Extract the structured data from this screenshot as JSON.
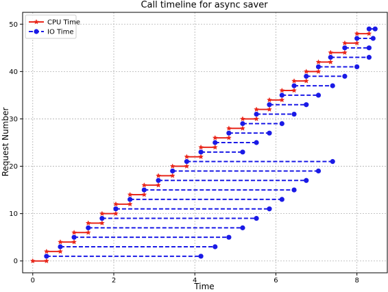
{
  "chart_data": {
    "type": "line",
    "title": "Call timeline for async saver",
    "xlabel": "Time",
    "ylabel": "Request Number",
    "xlim": [
      -0.25,
      8.75
    ],
    "ylim": [
      -2.5,
      52.5
    ],
    "xticks": [
      0,
      2,
      4,
      6,
      8
    ],
    "yticks": [
      0,
      10,
      20,
      30,
      40,
      50
    ],
    "grid": true,
    "legend": {
      "placement": "top-left"
    },
    "series": [
      {
        "name": "CPU Time",
        "color": "#e8261a",
        "line_style": "solid",
        "marker": "star",
        "segments": [
          {
            "y": 0,
            "x": [
              0.0,
              0.34
            ]
          },
          {
            "y": 2,
            "x": [
              0.34,
              0.68
            ]
          },
          {
            "y": 4,
            "x": [
              0.68,
              1.02
            ]
          },
          {
            "y": 6,
            "x": [
              1.02,
              1.37
            ]
          },
          {
            "y": 8,
            "x": [
              1.37,
              1.71
            ]
          },
          {
            "y": 10,
            "x": [
              1.71,
              2.05
            ]
          },
          {
            "y": 12,
            "x": [
              2.05,
              2.4
            ]
          },
          {
            "y": 14,
            "x": [
              2.4,
              2.75
            ]
          },
          {
            "y": 16,
            "x": [
              2.75,
              3.1
            ]
          },
          {
            "y": 18,
            "x": [
              3.1,
              3.45
            ]
          },
          {
            "y": 20,
            "x": [
              3.45,
              3.8
            ]
          },
          {
            "y": 22,
            "x": [
              3.8,
              4.15
            ]
          },
          {
            "y": 24,
            "x": [
              4.15,
              4.5
            ]
          },
          {
            "y": 26,
            "x": [
              4.5,
              4.84
            ]
          },
          {
            "y": 28,
            "x": [
              4.84,
              5.18
            ]
          },
          {
            "y": 30,
            "x": [
              5.18,
              5.52
            ]
          },
          {
            "y": 32,
            "x": [
              5.52,
              5.84
            ]
          },
          {
            "y": 34,
            "x": [
              5.84,
              6.15
            ]
          },
          {
            "y": 36,
            "x": [
              6.15,
              6.45
            ]
          },
          {
            "y": 38,
            "x": [
              6.45,
              6.75
            ]
          },
          {
            "y": 40,
            "x": [
              6.75,
              7.05
            ]
          },
          {
            "y": 42,
            "x": [
              7.05,
              7.35
            ]
          },
          {
            "y": 44,
            "x": [
              7.35,
              7.7
            ]
          },
          {
            "y": 46,
            "x": [
              7.7,
              8.0
            ]
          },
          {
            "y": 48,
            "x": [
              8.0,
              8.3
            ]
          }
        ]
      },
      {
        "name": "IO Time",
        "color": "#1a1ae6",
        "line_style": "dashed",
        "marker": "circle",
        "segments": [
          {
            "y": 1,
            "x": [
              0.34,
              4.15
            ]
          },
          {
            "y": 3,
            "x": [
              0.68,
              4.5
            ]
          },
          {
            "y": 5,
            "x": [
              1.02,
              4.84
            ]
          },
          {
            "y": 7,
            "x": [
              1.37,
              5.18
            ]
          },
          {
            "y": 9,
            "x": [
              1.71,
              5.52
            ]
          },
          {
            "y": 11,
            "x": [
              2.05,
              5.84
            ]
          },
          {
            "y": 13,
            "x": [
              2.4,
              6.15
            ]
          },
          {
            "y": 15,
            "x": [
              2.75,
              6.45
            ]
          },
          {
            "y": 17,
            "x": [
              3.1,
              6.75
            ]
          },
          {
            "y": 19,
            "x": [
              3.45,
              7.05
            ]
          },
          {
            "y": 21,
            "x": [
              3.8,
              7.4
            ]
          },
          {
            "y": 23,
            "x": [
              4.15,
              5.18
            ]
          },
          {
            "y": 25,
            "x": [
              4.5,
              5.52
            ]
          },
          {
            "y": 27,
            "x": [
              4.84,
              5.84
            ]
          },
          {
            "y": 29,
            "x": [
              5.18,
              6.15
            ]
          },
          {
            "y": 31,
            "x": [
              5.52,
              6.45
            ]
          },
          {
            "y": 33,
            "x": [
              5.84,
              6.75
            ]
          },
          {
            "y": 35,
            "x": [
              6.15,
              7.05
            ]
          },
          {
            "y": 37,
            "x": [
              6.45,
              7.4
            ]
          },
          {
            "y": 39,
            "x": [
              6.75,
              7.7
            ]
          },
          {
            "y": 41,
            "x": [
              7.05,
              8.0
            ]
          },
          {
            "y": 43,
            "x": [
              7.35,
              8.3
            ]
          },
          {
            "y": 45,
            "x": [
              7.7,
              8.3
            ]
          },
          {
            "y": 47,
            "x": [
              8.0,
              8.4
            ]
          },
          {
            "y": 49,
            "x": [
              8.3,
              8.45
            ]
          }
        ]
      }
    ]
  }
}
